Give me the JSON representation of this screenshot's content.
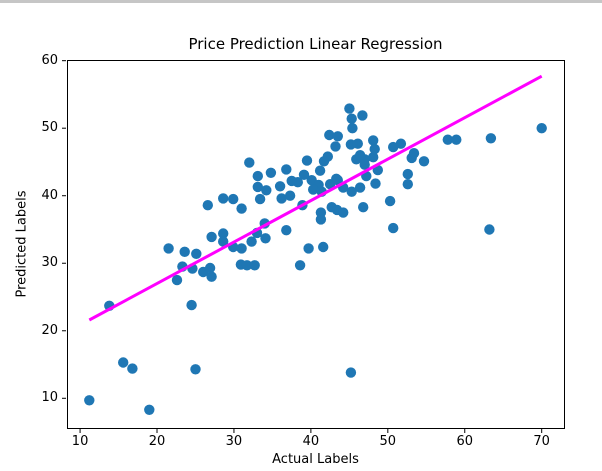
{
  "window": {
    "top_bar_color": "#c6c6c6",
    "background": "#ffffff"
  },
  "chart_data": {
    "type": "scatter",
    "title": "Price Prediction Linear Regression",
    "xlabel": "Actual Labels",
    "ylabel": "Predicted Labels",
    "xlim": [
      8.3,
      72.9
    ],
    "ylim": [
      5.6,
      60.1
    ],
    "xticks": [
      10,
      20,
      30,
      40,
      50,
      60,
      70
    ],
    "yticks": [
      10,
      20,
      30,
      40,
      50,
      60
    ],
    "grid": false,
    "legend": null,
    "marker_color": "#1f77b4",
    "marker_radius": 5.2,
    "line_color": "#ff00ff",
    "line_width": 3,
    "spine_color": "#000000",
    "regression_line": {
      "x": [
        11.2,
        70.0
      ],
      "y": [
        21.6,
        57.7
      ]
    },
    "points": [
      [
        11.2,
        9.7
      ],
      [
        19.0,
        8.3
      ],
      [
        15.6,
        15.3
      ],
      [
        16.8,
        14.4
      ],
      [
        25.0,
        14.3
      ],
      [
        45.2,
        13.8
      ],
      [
        13.8,
        23.7
      ],
      [
        24.5,
        23.8
      ],
      [
        22.6,
        27.5
      ],
      [
        23.3,
        29.5
      ],
      [
        24.6,
        29.2
      ],
      [
        26.0,
        28.7
      ],
      [
        26.9,
        29.3
      ],
      [
        27.1,
        28.0
      ],
      [
        30.9,
        29.8
      ],
      [
        31.7,
        29.7
      ],
      [
        32.7,
        29.7
      ],
      [
        38.6,
        29.7
      ],
      [
        21.5,
        32.2
      ],
      [
        23.6,
        31.7
      ],
      [
        25.1,
        31.4
      ],
      [
        27.1,
        33.9
      ],
      [
        28.6,
        34.4
      ],
      [
        28.6,
        33.2
      ],
      [
        29.9,
        32.4
      ],
      [
        31.0,
        32.2
      ],
      [
        32.3,
        33.2
      ],
      [
        33.0,
        34.5
      ],
      [
        34.1,
        33.7
      ],
      [
        34.0,
        35.9
      ],
      [
        36.8,
        34.9
      ],
      [
        39.7,
        32.2
      ],
      [
        41.6,
        32.4
      ],
      [
        26.6,
        38.6
      ],
      [
        28.6,
        39.6
      ],
      [
        29.9,
        39.5
      ],
      [
        31.0,
        38.1
      ],
      [
        33.1,
        41.3
      ],
      [
        34.2,
        40.8
      ],
      [
        33.4,
        39.5
      ],
      [
        36.0,
        41.4
      ],
      [
        36.2,
        39.6
      ],
      [
        37.3,
        40.0
      ],
      [
        38.9,
        38.6
      ],
      [
        38.3,
        42.0
      ],
      [
        37.5,
        42.2
      ],
      [
        40.1,
        42.3
      ],
      [
        41.0,
        41.6
      ],
      [
        40.3,
        40.9
      ],
      [
        41.4,
        40.6
      ],
      [
        42.5,
        41.7
      ],
      [
        43.5,
        42.3
      ],
      [
        44.2,
        41.2
      ],
      [
        45.3,
        40.6
      ],
      [
        46.4,
        41.2
      ],
      [
        41.3,
        37.5
      ],
      [
        41.3,
        36.5
      ],
      [
        42.7,
        38.3
      ],
      [
        43.4,
        37.9
      ],
      [
        44.2,
        37.5
      ],
      [
        46.8,
        38.3
      ],
      [
        50.3,
        39.2
      ],
      [
        50.7,
        35.2
      ],
      [
        63.2,
        35.0
      ],
      [
        32.0,
        44.9
      ],
      [
        33.1,
        42.9
      ],
      [
        34.8,
        43.4
      ],
      [
        36.8,
        43.9
      ],
      [
        39.1,
        43.1
      ],
      [
        41.2,
        43.7
      ],
      [
        43.3,
        42.5
      ],
      [
        47.2,
        42.9
      ],
      [
        48.4,
        41.8
      ],
      [
        48.7,
        43.8
      ],
      [
        47.0,
        44.6
      ],
      [
        39.5,
        45.2
      ],
      [
        41.7,
        45.1
      ],
      [
        42.2,
        45.8
      ],
      [
        45.9,
        45.4
      ],
      [
        47.0,
        45.4
      ],
      [
        48.1,
        45.7
      ],
      [
        46.4,
        46.0
      ],
      [
        42.4,
        49.0
      ],
      [
        43.5,
        48.8
      ],
      [
        43.2,
        47.3
      ],
      [
        45.2,
        47.6
      ],
      [
        46.1,
        47.7
      ],
      [
        48.1,
        48.2
      ],
      [
        48.3,
        46.9
      ],
      [
        45.0,
        52.9
      ],
      [
        45.3,
        51.4
      ],
      [
        46.7,
        51.9
      ],
      [
        45.4,
        50.0
      ],
      [
        52.6,
        41.7
      ],
      [
        52.6,
        43.2
      ],
      [
        51.7,
        47.7
      ],
      [
        50.7,
        47.2
      ],
      [
        53.1,
        45.6
      ],
      [
        53.4,
        46.3
      ],
      [
        54.7,
        45.1
      ],
      [
        57.8,
        48.3
      ],
      [
        58.9,
        48.3
      ],
      [
        63.4,
        48.5
      ],
      [
        70.0,
        50.0
      ]
    ]
  }
}
